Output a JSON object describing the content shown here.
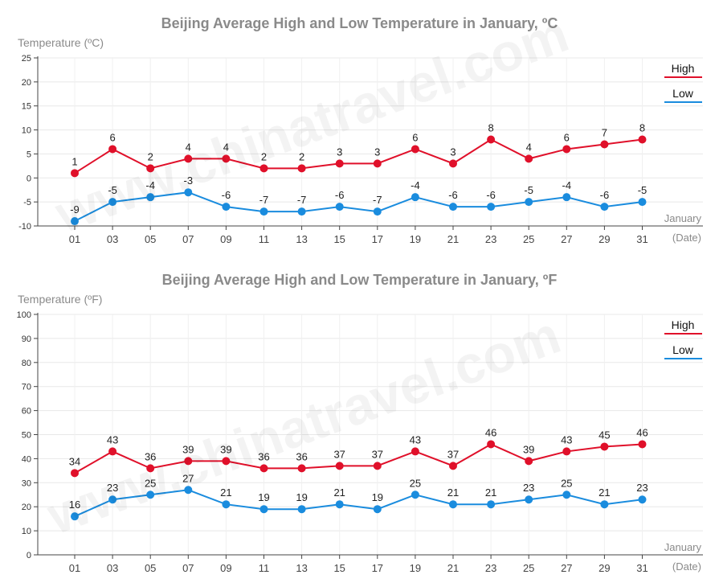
{
  "chart_data": [
    {
      "type": "line",
      "title": "Beijing Average High and Low Temperature in January, ºC",
      "ylabel": "Temperature (ºC)",
      "x_tick_label": "January",
      "x_unit_label": "(Date)",
      "categories": [
        "01",
        "03",
        "05",
        "07",
        "09",
        "11",
        "13",
        "15",
        "17",
        "19",
        "21",
        "23",
        "25",
        "27",
        "29",
        "31"
      ],
      "ylim": [
        -10,
        25
      ],
      "yticks": [
        -10,
        -5,
        0,
        5,
        10,
        15,
        20,
        25
      ],
      "grid": true,
      "legend_position": "top-right",
      "series": [
        {
          "name": "High",
          "color": "#e0102a",
          "values": [
            1,
            6,
            2,
            4,
            4,
            2,
            2,
            3,
            3,
            6,
            3,
            8,
            4,
            6,
            7,
            8
          ]
        },
        {
          "name": "Low",
          "color": "#1a8cde",
          "values": [
            -9,
            -5,
            -4,
            -3,
            -6,
            -7,
            -7,
            -6,
            -7,
            -4,
            -6,
            -6,
            -5,
            -4,
            -6,
            -5
          ]
        }
      ]
    },
    {
      "type": "line",
      "title": "Beijing Average High and Low Temperature in January, ºF",
      "ylabel": "Temperature (ºF)",
      "x_tick_label": "January",
      "x_unit_label": "(Date)",
      "categories": [
        "01",
        "03",
        "05",
        "07",
        "09",
        "11",
        "13",
        "15",
        "17",
        "19",
        "21",
        "23",
        "25",
        "27",
        "29",
        "31"
      ],
      "ylim": [
        0,
        100
      ],
      "yticks": [
        0,
        10,
        20,
        30,
        40,
        50,
        60,
        70,
        80,
        90,
        100
      ],
      "grid": true,
      "legend_position": "top-right",
      "series": [
        {
          "name": "High",
          "color": "#e0102a",
          "values": [
            34,
            43,
            36,
            39,
            39,
            36,
            36,
            37,
            37,
            43,
            37,
            46,
            39,
            43,
            45,
            46
          ]
        },
        {
          "name": "Low",
          "color": "#1a8cde",
          "values": [
            16,
            23,
            25,
            27,
            21,
            19,
            19,
            21,
            19,
            25,
            21,
            21,
            23,
            25,
            21,
            23
          ]
        }
      ]
    }
  ],
  "watermark": "www.chinatravel.com"
}
